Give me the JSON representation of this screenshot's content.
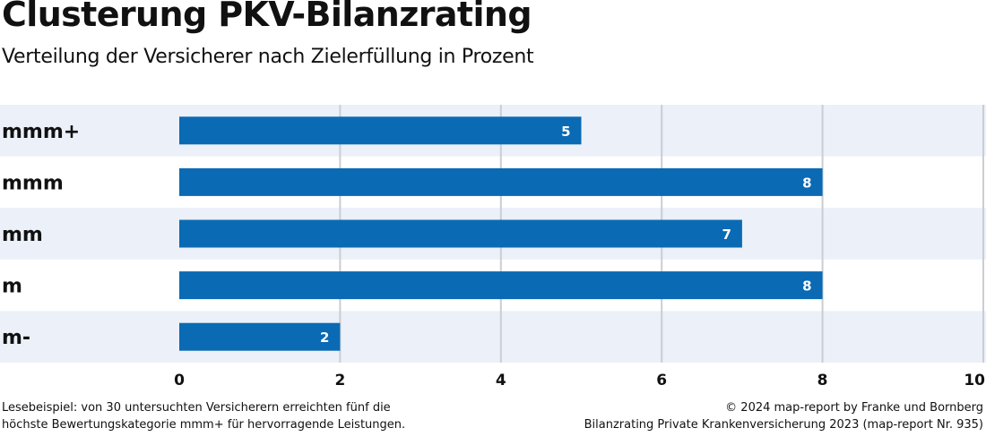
{
  "title": "Clusterung PKV-Bilanzrating",
  "subtitle": "Verteilung der Versicherer nach Zielerfüllung in Prozent",
  "chart_data": {
    "type": "bar",
    "orientation": "horizontal",
    "categories": [
      "mmm+",
      "mmm",
      "mm",
      "m",
      "m-"
    ],
    "values": [
      5,
      8,
      7,
      8,
      2
    ],
    "xlim": [
      0,
      10
    ],
    "xticks": [
      0,
      2,
      4,
      6,
      8,
      10
    ],
    "xlabel": "",
    "ylabel": "",
    "grid": true,
    "colors": {
      "bar": "#0a6ab4",
      "band": "#ecf0f8",
      "grid": "#c9ced4"
    }
  },
  "footer": {
    "left_line1": "Lesebeispiel: von 30 untersuchten Versicherern erreichten fünf die",
    "left_line2": "höchste Bewertungskategorie mmm+ für hervorragende Leistungen.",
    "right_line1": "© 2024 map-report by Franke und Bornberg",
    "right_line2": "Bilanzrating Private Krankenversicherung 2023 (map-report Nr. 935)"
  }
}
